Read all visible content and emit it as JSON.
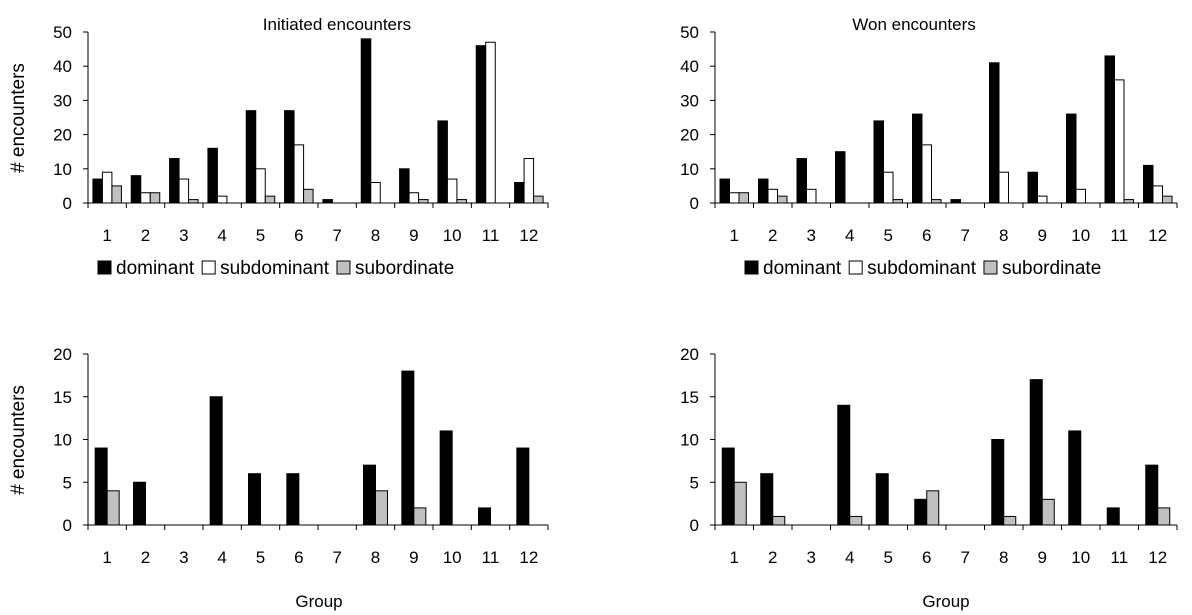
{
  "legend": {
    "entries": [
      {
        "label": "dominant",
        "color": "#000000"
      },
      {
        "label": "subdominant",
        "color": "#ffffff"
      },
      {
        "label": "subordinate",
        "color": "#c0c0c0"
      }
    ]
  },
  "chart_data": [
    {
      "type": "bar",
      "title": "Initiated encounters",
      "xlabel": "",
      "ylabel": "# encounters",
      "ylim": [
        0,
        50
      ],
      "yticks": [
        0,
        10,
        20,
        30,
        40,
        50
      ],
      "categories": [
        "1",
        "2",
        "3",
        "4",
        "5",
        "6",
        "7",
        "8",
        "9",
        "10",
        "11",
        "12"
      ],
      "series": [
        {
          "name": "dominant",
          "values": [
            7,
            8,
            13,
            16,
            27,
            27,
            1,
            48,
            10,
            24,
            46,
            6
          ]
        },
        {
          "name": "subdominant",
          "values": [
            9,
            3,
            7,
            2,
            10,
            17,
            0,
            6,
            3,
            7,
            47,
            13
          ]
        },
        {
          "name": "subordinate",
          "values": [
            5,
            3,
            1,
            0,
            2,
            4,
            0,
            0,
            1,
            1,
            0,
            2
          ]
        }
      ]
    },
    {
      "type": "bar",
      "title": "Won encounters",
      "xlabel": "",
      "ylabel": "",
      "ylim": [
        0,
        50
      ],
      "yticks": [
        0,
        10,
        20,
        30,
        40,
        50
      ],
      "categories": [
        "1",
        "2",
        "3",
        "4",
        "5",
        "6",
        "7",
        "8",
        "9",
        "10",
        "11",
        "12"
      ],
      "series": [
        {
          "name": "dominant",
          "values": [
            7,
            7,
            13,
            15,
            24,
            26,
            1,
            41,
            9,
            26,
            43,
            11
          ]
        },
        {
          "name": "subdominant",
          "values": [
            3,
            4,
            4,
            0,
            9,
            17,
            0,
            9,
            2,
            4,
            36,
            5
          ]
        },
        {
          "name": "subordinate",
          "values": [
            3,
            2,
            0,
            0,
            1,
            1,
            0,
            0,
            0,
            0,
            1,
            2
          ]
        }
      ]
    },
    {
      "type": "bar",
      "title": "",
      "xlabel": "Group",
      "ylabel": "# encounters",
      "ylim": [
        0,
        20
      ],
      "yticks": [
        0,
        5,
        10,
        15,
        20
      ],
      "categories": [
        "1",
        "2",
        "3",
        "4",
        "5",
        "6",
        "7",
        "8",
        "9",
        "10",
        "11",
        "12"
      ],
      "series": [
        {
          "name": "dominant",
          "values": [
            9,
            5,
            0,
            15,
            6,
            6,
            0,
            7,
            18,
            11,
            2,
            9
          ]
        },
        {
          "name": "subordinate",
          "values": [
            4,
            0,
            0,
            0,
            0,
            0,
            0,
            4,
            2,
            0,
            0,
            0
          ]
        }
      ]
    },
    {
      "type": "bar",
      "title": "",
      "xlabel": "Group",
      "ylabel": "",
      "ylim": [
        0,
        20
      ],
      "yticks": [
        0,
        5,
        10,
        15,
        20
      ],
      "categories": [
        "1",
        "2",
        "3",
        "4",
        "5",
        "6",
        "7",
        "8",
        "9",
        "10",
        "11",
        "12"
      ],
      "series": [
        {
          "name": "dominant",
          "values": [
            9,
            6,
            0,
            14,
            6,
            3,
            0,
            10,
            17,
            11,
            2,
            7
          ]
        },
        {
          "name": "subordinate",
          "values": [
            5,
            1,
            0,
            1,
            0,
            4,
            0,
            1,
            3,
            0,
            0,
            2
          ]
        }
      ]
    }
  ]
}
